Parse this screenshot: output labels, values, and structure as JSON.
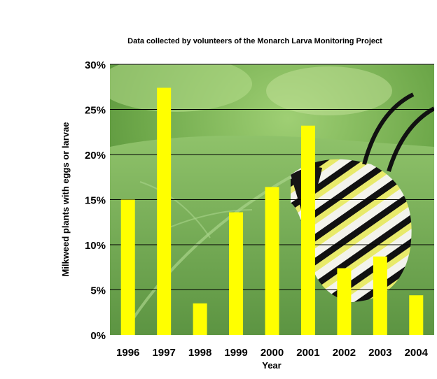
{
  "chart_data": {
    "type": "bar",
    "title": "Data collected by volunteers of the Monarch Larva Monitoring Project",
    "xlabel": "Year",
    "ylabel": "Milkweed plants with eggs or larvae",
    "categories": [
      "1996",
      "1997",
      "1998",
      "1999",
      "2000",
      "2001",
      "2002",
      "2003",
      "2004"
    ],
    "values": [
      15.0,
      27.4,
      3.5,
      13.6,
      16.4,
      23.2,
      7.4,
      8.7,
      4.4
    ],
    "ylim": [
      0,
      30
    ],
    "yticks": [
      "0%",
      "5%",
      "10%",
      "15%",
      "20%",
      "25%",
      "30%"
    ],
    "grid": true,
    "bar_color": "#ffff00",
    "background": "photo of monarch caterpillar on milkweed leaf"
  }
}
